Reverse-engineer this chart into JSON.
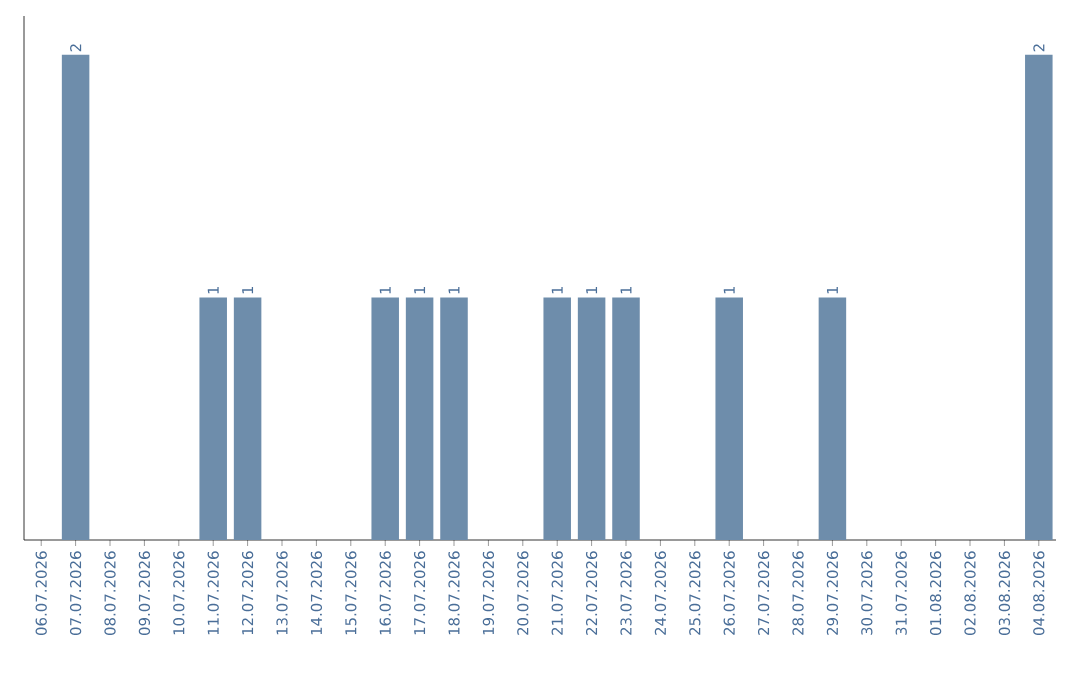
{
  "chart_data": {
    "type": "bar",
    "categories": [
      "06.07.2026",
      "07.07.2026",
      "08.07.2026",
      "09.07.2026",
      "10.07.2026",
      "11.07.2026",
      "12.07.2026",
      "13.07.2026",
      "14.07.2026",
      "15.07.2026",
      "16.07.2026",
      "17.07.2026",
      "18.07.2026",
      "19.07.2026",
      "20.07.2026",
      "21.07.2026",
      "22.07.2026",
      "23.07.2026",
      "24.07.2026",
      "25.07.2026",
      "26.07.2026",
      "27.07.2026",
      "28.07.2026",
      "29.07.2026",
      "30.07.2026",
      "31.07.2026",
      "01.08.2026",
      "02.08.2026",
      "03.08.2026",
      "04.08.2026"
    ],
    "values": [
      0,
      2,
      0,
      0,
      0,
      1,
      1,
      0,
      0,
      0,
      1,
      1,
      1,
      0,
      0,
      1,
      1,
      1,
      0,
      0,
      1,
      0,
      0,
      1,
      0,
      0,
      0,
      0,
      0,
      2
    ],
    "value_labels": [
      null,
      "2",
      null,
      null,
      null,
      "1",
      "1",
      null,
      null,
      null,
      "1",
      "1",
      "1",
      null,
      null,
      "1",
      "1",
      "1",
      null,
      null,
      "1",
      null,
      null,
      "1",
      null,
      null,
      null,
      null,
      null,
      "2"
    ],
    "color": "#6e8dab"
  }
}
